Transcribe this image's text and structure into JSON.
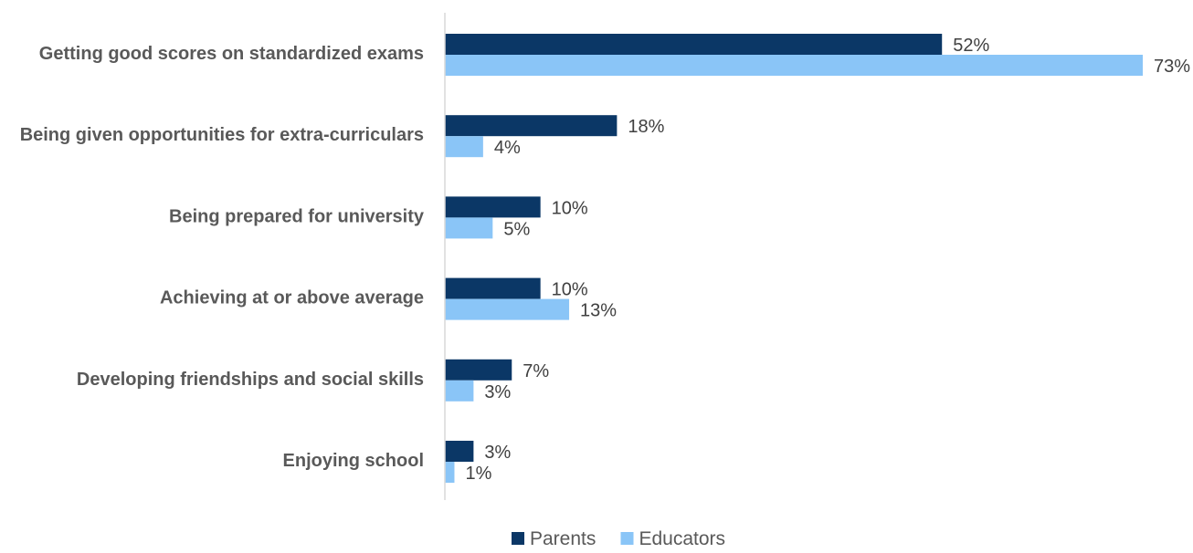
{
  "chart_data": {
    "type": "bar",
    "orientation": "horizontal",
    "categories": [
      "Getting good scores on standardized exams",
      "Being given opportunities for extra-curriculars",
      "Being prepared for university",
      "Achieving at or above average",
      "Developing friendships and social skills",
      "Enjoying school"
    ],
    "series": [
      {
        "name": "Parents",
        "color": "#0b3766",
        "values": [
          52,
          18,
          10,
          10,
          7,
          3
        ],
        "labels": [
          "52%",
          "18%",
          "10%",
          "10%",
          "7%",
          "3%"
        ]
      },
      {
        "name": "Educators",
        "color": "#8ac5f7",
        "values": [
          73,
          4,
          5,
          13,
          3,
          1
        ],
        "labels": [
          "73%",
          "4%",
          "5%",
          "13%",
          "3%",
          "1%"
        ]
      }
    ],
    "value_unit": "%",
    "xlim": [
      0,
      73
    ],
    "grid": false,
    "legend": "bottom-center"
  }
}
